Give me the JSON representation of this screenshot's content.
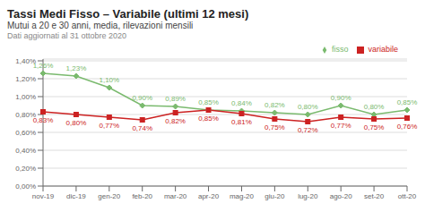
{
  "chart_data": {
    "type": "line",
    "title": "Tassi Medi Fisso – Variabile (ultimi 12 mesi)",
    "subtitle": "Mutui a 20 e 30 anni, media, rilevazioni mensili",
    "annotations": [
      "Dati aggiornati al 31 ottobre 2020"
    ],
    "categories": [
      "nov-19",
      "dic-19",
      "gen-20",
      "feb-20",
      "mar-20",
      "apr-20",
      "mag-20",
      "giu-20",
      "lug-20",
      "ago-20",
      "set-20",
      "ott-20"
    ],
    "series": [
      {
        "name": "fisso",
        "color": "#7aba6e",
        "marker": "diamond",
        "values": [
          1.26,
          1.23,
          1.1,
          0.9,
          0.89,
          0.85,
          0.84,
          0.82,
          0.8,
          0.9,
          0.8,
          0.85
        ],
        "value_labels": [
          "1,26%",
          "1,23%",
          "1,10%",
          "0,90%",
          "0,89%",
          "0,85%",
          "0,84%",
          "0,82%",
          "0,80%",
          "0,90%",
          "0,80%",
          "0,85%"
        ]
      },
      {
        "name": "variabile",
        "color": "#cc2222",
        "marker": "square",
        "values": [
          0.83,
          0.8,
          0.77,
          0.74,
          0.82,
          0.85,
          0.81,
          0.75,
          0.72,
          0.77,
          0.75,
          0.76
        ],
        "value_labels": [
          "0,83%",
          "0,80%",
          "0,77%",
          "0,74%",
          "0,82%",
          "0,85%",
          "0,81%",
          "0,75%",
          "0,72%",
          "0,77%",
          "0,75%",
          "0,76%"
        ]
      }
    ],
    "ylim": [
      0.0,
      1.42
    ],
    "yticks": [
      {
        "value": 0.0,
        "label": "0,00%"
      },
      {
        "value": 0.2,
        "label": "0,20%"
      },
      {
        "value": 0.4,
        "label": "0,40%"
      },
      {
        "value": 0.6,
        "label": "0,60%"
      },
      {
        "value": 0.8,
        "label": "0,80%"
      },
      {
        "value": 1.0,
        "label": "1,00%"
      },
      {
        "value": 1.2,
        "label": "1,20%"
      },
      {
        "value": 1.4,
        "label": "1,40%"
      }
    ],
    "grid": true,
    "legend": "upper right",
    "data_labels": true
  }
}
